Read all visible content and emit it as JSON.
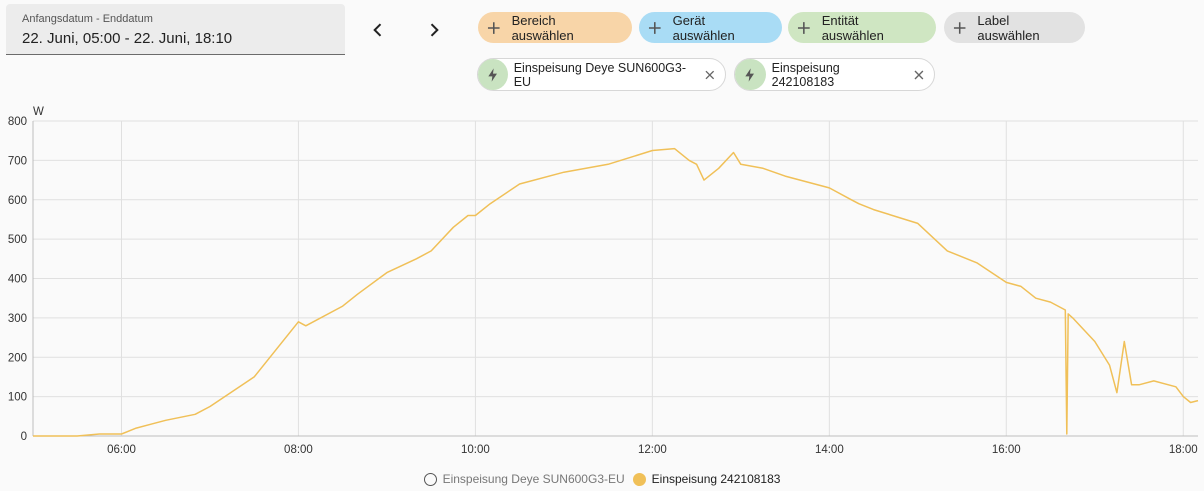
{
  "date_picker": {
    "label": "Anfangsdatum - Enddatum",
    "value": "22. Juni, 05:00 - 22. Juni, 18:10"
  },
  "nav": {
    "prev_icon": "chevron-left-icon",
    "next_icon": "chevron-right-icon"
  },
  "target_chips": [
    {
      "label": "Bereich auswählen",
      "bg": "#f8d5a8"
    },
    {
      "label": "Gerät auswählen",
      "bg": "#a9dcf5"
    },
    {
      "label": "Entität auswählen",
      "bg": "#cfe6c2"
    },
    {
      "label": "Label auswählen",
      "bg": "#e2e2e2"
    }
  ],
  "selected_entities": [
    {
      "label": "Einspeisung Deye SUN600G3-EU",
      "icon": "flash-icon"
    },
    {
      "label": "Einspeisung 242108183",
      "icon": "flash-icon"
    }
  ],
  "colors": {
    "series_active": "#f0c058",
    "grid": "#e0e0e0",
    "icon": "#444444"
  },
  "chart_data": {
    "type": "line",
    "ylabel": "W",
    "ylim": [
      0,
      800
    ],
    "yticks": [
      "0",
      "100",
      "200",
      "300",
      "400",
      "500",
      "600",
      "700",
      "800"
    ],
    "xlim": [
      "05:00",
      "18:10"
    ],
    "xticks": [
      "06:00",
      "08:00",
      "10:00",
      "12:00",
      "14:00",
      "16:00",
      "18:00"
    ],
    "grid": true,
    "legend_position": "bottom",
    "legend": [
      {
        "name": "Einspeisung Deye SUN600G3-EU",
        "hidden": true
      },
      {
        "name": "Einspeisung 242108183",
        "hidden": false
      }
    ],
    "series": [
      {
        "name": "Einspeisung 242108183",
        "x": [
          "05:00",
          "05:30",
          "05:45",
          "06:00",
          "06:10",
          "06:20",
          "06:30",
          "06:50",
          "07:00",
          "07:30",
          "08:00",
          "08:05",
          "08:30",
          "08:40",
          "09:00",
          "09:20",
          "09:30",
          "09:45",
          "09:55",
          "10:00",
          "10:10",
          "10:30",
          "11:00",
          "11:30",
          "12:00",
          "12:15",
          "12:25",
          "12:30",
          "12:35",
          "12:45",
          "12:55",
          "13:00",
          "13:15",
          "13:30",
          "14:00",
          "14:15",
          "14:20",
          "14:30",
          "15:00",
          "15:20",
          "15:40",
          "16:00",
          "16:10",
          "16:20",
          "16:30",
          "16:40",
          "16:41",
          "16:42",
          "16:45",
          "17:00",
          "17:10",
          "17:15",
          "17:20",
          "17:25",
          "17:30",
          "17:40",
          "17:55",
          "18:00",
          "18:05",
          "18:10"
        ],
        "values": [
          0,
          0,
          5,
          5,
          20,
          30,
          40,
          55,
          75,
          150,
          290,
          280,
          330,
          360,
          415,
          450,
          470,
          530,
          560,
          560,
          590,
          640,
          670,
          690,
          725,
          730,
          700,
          690,
          650,
          680,
          720,
          690,
          680,
          660,
          630,
          600,
          590,
          575,
          540,
          470,
          440,
          390,
          380,
          350,
          340,
          320,
          5,
          310,
          300,
          240,
          180,
          110,
          240,
          130,
          130,
          140,
          125,
          100,
          85,
          90
        ]
      }
    ]
  }
}
